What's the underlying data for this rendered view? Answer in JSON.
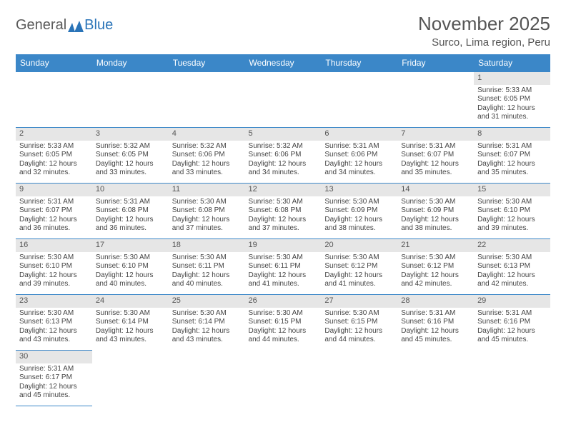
{
  "logo": {
    "text1": "General",
    "text2": "Blue"
  },
  "title": "November 2025",
  "location": "Surco, Lima region, Peru",
  "colors": {
    "header_bg": "#3b87c8",
    "header_text": "#ffffff",
    "daynum_bg": "#e6e6e6",
    "border": "#3b87c8",
    "body_text": "#444444"
  },
  "day_headers": [
    "Sunday",
    "Monday",
    "Tuesday",
    "Wednesday",
    "Thursday",
    "Friday",
    "Saturday"
  ],
  "weeks": [
    [
      null,
      null,
      null,
      null,
      null,
      null,
      {
        "n": "1",
        "sr": "5:33 AM",
        "ss": "6:05 PM",
        "dl": "12 hours and 31 minutes."
      }
    ],
    [
      {
        "n": "2",
        "sr": "5:33 AM",
        "ss": "6:05 PM",
        "dl": "12 hours and 32 minutes."
      },
      {
        "n": "3",
        "sr": "5:32 AM",
        "ss": "6:05 PM",
        "dl": "12 hours and 33 minutes."
      },
      {
        "n": "4",
        "sr": "5:32 AM",
        "ss": "6:06 PM",
        "dl": "12 hours and 33 minutes."
      },
      {
        "n": "5",
        "sr": "5:32 AM",
        "ss": "6:06 PM",
        "dl": "12 hours and 34 minutes."
      },
      {
        "n": "6",
        "sr": "5:31 AM",
        "ss": "6:06 PM",
        "dl": "12 hours and 34 minutes."
      },
      {
        "n": "7",
        "sr": "5:31 AM",
        "ss": "6:07 PM",
        "dl": "12 hours and 35 minutes."
      },
      {
        "n": "8",
        "sr": "5:31 AM",
        "ss": "6:07 PM",
        "dl": "12 hours and 35 minutes."
      }
    ],
    [
      {
        "n": "9",
        "sr": "5:31 AM",
        "ss": "6:07 PM",
        "dl": "12 hours and 36 minutes."
      },
      {
        "n": "10",
        "sr": "5:31 AM",
        "ss": "6:08 PM",
        "dl": "12 hours and 36 minutes."
      },
      {
        "n": "11",
        "sr": "5:30 AM",
        "ss": "6:08 PM",
        "dl": "12 hours and 37 minutes."
      },
      {
        "n": "12",
        "sr": "5:30 AM",
        "ss": "6:08 PM",
        "dl": "12 hours and 37 minutes."
      },
      {
        "n": "13",
        "sr": "5:30 AM",
        "ss": "6:09 PM",
        "dl": "12 hours and 38 minutes."
      },
      {
        "n": "14",
        "sr": "5:30 AM",
        "ss": "6:09 PM",
        "dl": "12 hours and 38 minutes."
      },
      {
        "n": "15",
        "sr": "5:30 AM",
        "ss": "6:10 PM",
        "dl": "12 hours and 39 minutes."
      }
    ],
    [
      {
        "n": "16",
        "sr": "5:30 AM",
        "ss": "6:10 PM",
        "dl": "12 hours and 39 minutes."
      },
      {
        "n": "17",
        "sr": "5:30 AM",
        "ss": "6:10 PM",
        "dl": "12 hours and 40 minutes."
      },
      {
        "n": "18",
        "sr": "5:30 AM",
        "ss": "6:11 PM",
        "dl": "12 hours and 40 minutes."
      },
      {
        "n": "19",
        "sr": "5:30 AM",
        "ss": "6:11 PM",
        "dl": "12 hours and 41 minutes."
      },
      {
        "n": "20",
        "sr": "5:30 AM",
        "ss": "6:12 PM",
        "dl": "12 hours and 41 minutes."
      },
      {
        "n": "21",
        "sr": "5:30 AM",
        "ss": "6:12 PM",
        "dl": "12 hours and 42 minutes."
      },
      {
        "n": "22",
        "sr": "5:30 AM",
        "ss": "6:13 PM",
        "dl": "12 hours and 42 minutes."
      }
    ],
    [
      {
        "n": "23",
        "sr": "5:30 AM",
        "ss": "6:13 PM",
        "dl": "12 hours and 43 minutes."
      },
      {
        "n": "24",
        "sr": "5:30 AM",
        "ss": "6:14 PM",
        "dl": "12 hours and 43 minutes."
      },
      {
        "n": "25",
        "sr": "5:30 AM",
        "ss": "6:14 PM",
        "dl": "12 hours and 43 minutes."
      },
      {
        "n": "26",
        "sr": "5:30 AM",
        "ss": "6:15 PM",
        "dl": "12 hours and 44 minutes."
      },
      {
        "n": "27",
        "sr": "5:30 AM",
        "ss": "6:15 PM",
        "dl": "12 hours and 44 minutes."
      },
      {
        "n": "28",
        "sr": "5:31 AM",
        "ss": "6:16 PM",
        "dl": "12 hours and 45 minutes."
      },
      {
        "n": "29",
        "sr": "5:31 AM",
        "ss": "6:16 PM",
        "dl": "12 hours and 45 minutes."
      }
    ],
    [
      {
        "n": "30",
        "sr": "5:31 AM",
        "ss": "6:17 PM",
        "dl": "12 hours and 45 minutes."
      },
      null,
      null,
      null,
      null,
      null,
      null
    ]
  ],
  "labels": {
    "sunrise": "Sunrise:",
    "sunset": "Sunset:",
    "daylight": "Daylight:"
  }
}
